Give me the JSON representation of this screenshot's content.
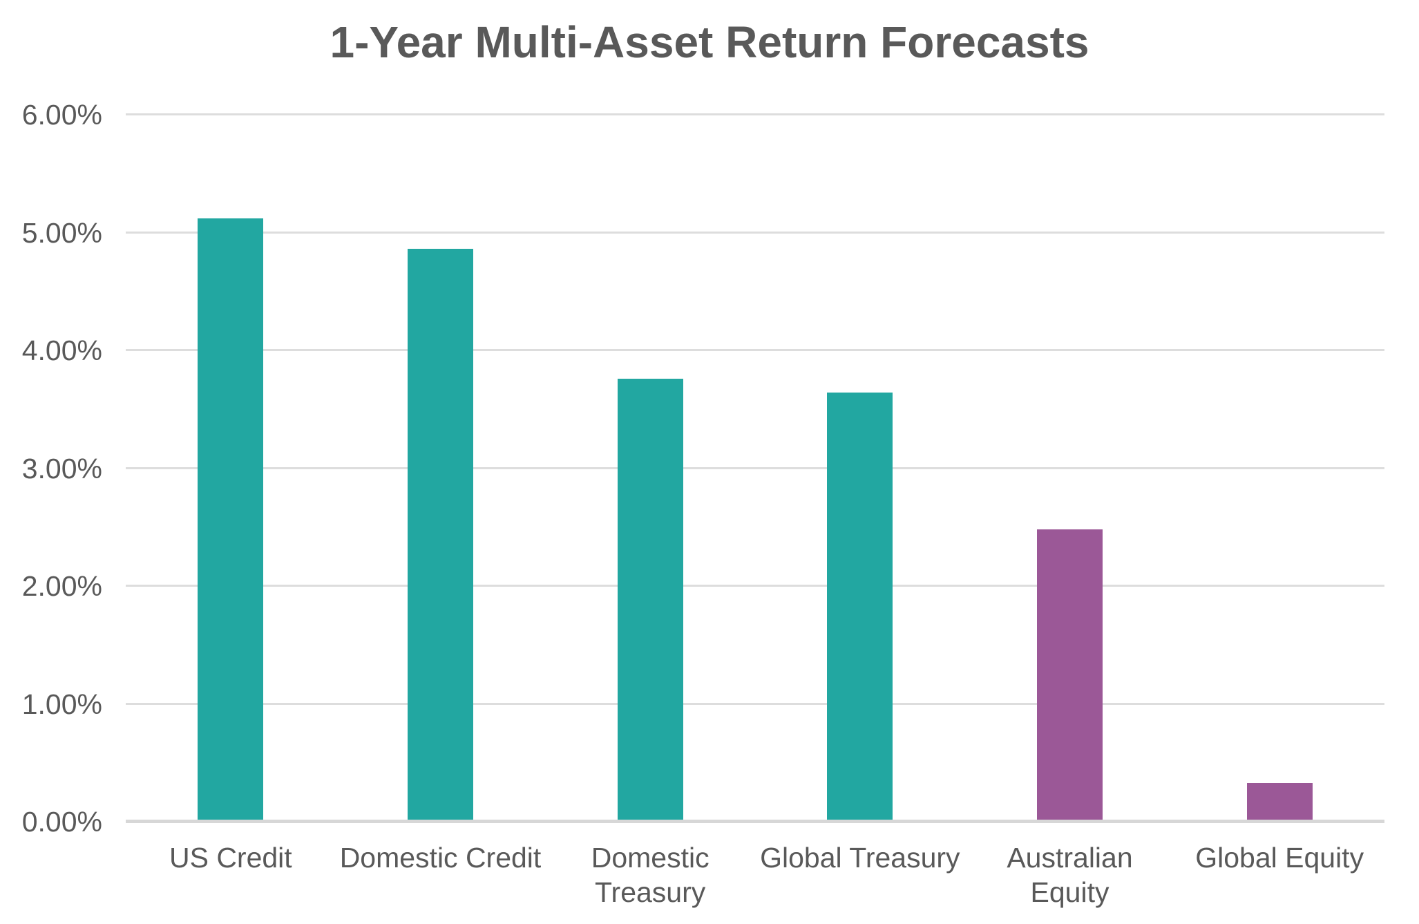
{
  "page": {
    "background": "#ffffff"
  },
  "chart": {
    "title_color": "#595959",
    "axis_text_color": "#595959",
    "gridline_color": "#DDDDDD",
    "axis_line_color": "#D7D7D7",
    "teal_accent": "#22A7A1",
    "purple_accent": "#9B5897"
  },
  "chart_data": {
    "type": "bar",
    "title": "1-Year Multi-Asset Return Forecasts",
    "categories": [
      "US Credit",
      "Domestic Credit",
      "Domestic Treasury",
      "Global Treasury",
      "Australian Equity",
      "Global Equity"
    ],
    "values": [
      5.12,
      4.86,
      3.76,
      3.64,
      2.48,
      0.33
    ],
    "value_unit": "%",
    "bar_colors": [
      "#22A7A1",
      "#22A7A1",
      "#22A7A1",
      "#22A7A1",
      "#9B5897",
      "#9B5897"
    ],
    "xlabel": "",
    "ylabel": "",
    "ylim": [
      0,
      6
    ],
    "ytick_step": 1,
    "ytick_labels": [
      "0.00%",
      "1.00%",
      "2.00%",
      "3.00%",
      "4.00%",
      "5.00%",
      "6.00%"
    ],
    "grid": true,
    "legend_position": "none"
  }
}
